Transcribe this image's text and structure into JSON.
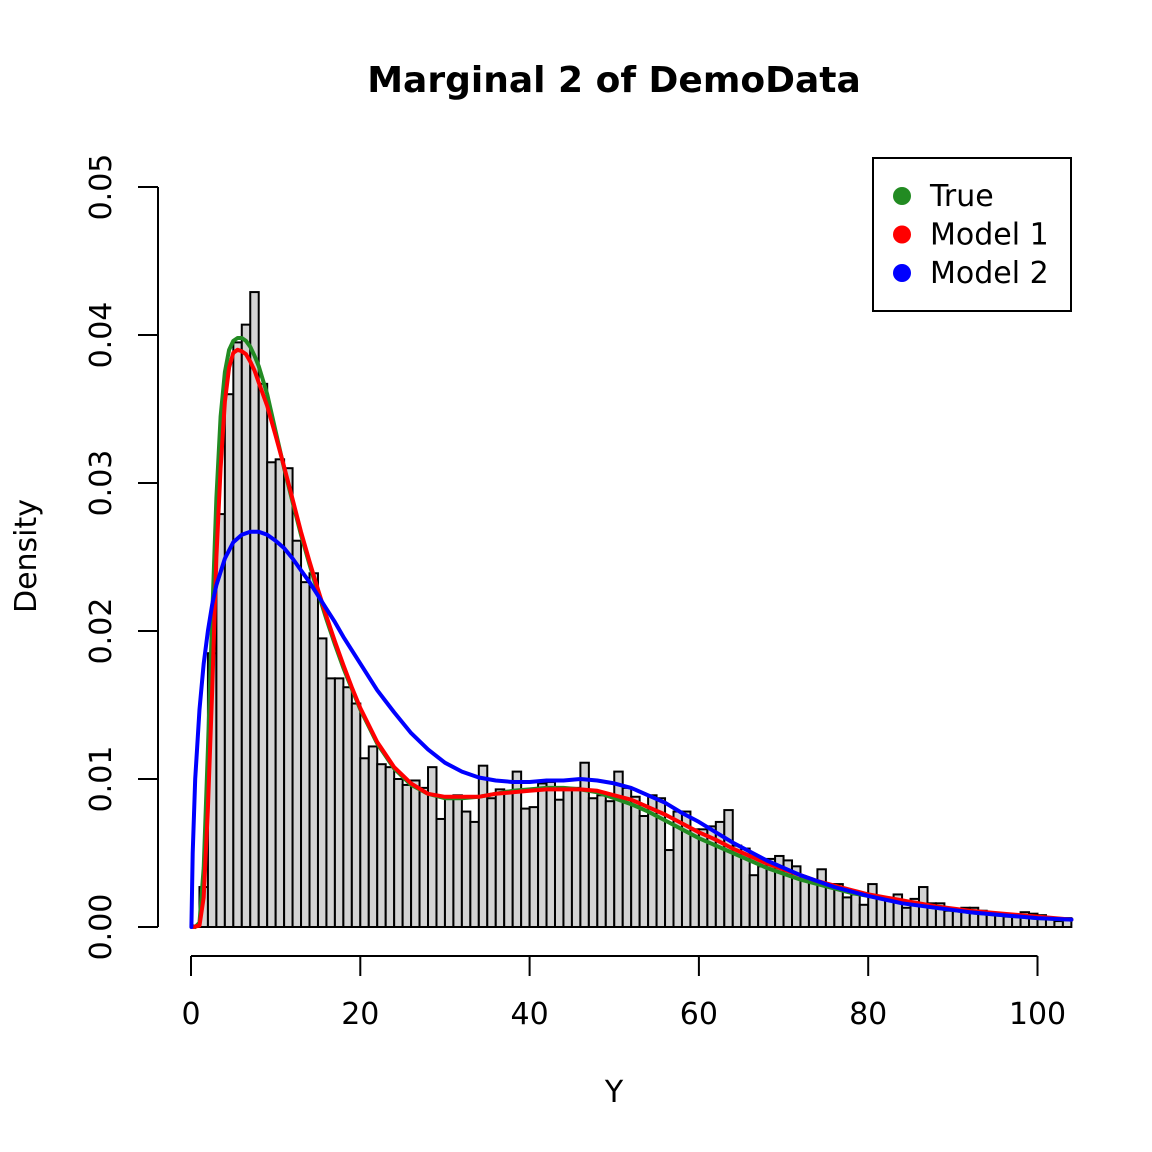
{
  "chart_data": {
    "type": "histogram",
    "title": "Marginal 2 of DemoData",
    "xlabel": "Y",
    "ylabel": "Density",
    "xlim": [
      0,
      104
    ],
    "ylim": [
      0,
      0.05
    ],
    "x_ticks": [
      0,
      20,
      40,
      60,
      80,
      100
    ],
    "x_tick_labels": [
      "0",
      "20",
      "40",
      "60",
      "80",
      "100"
    ],
    "y_ticks": [
      0,
      0.01,
      0.02,
      0.03,
      0.04,
      0.05
    ],
    "y_tick_labels": [
      "0.00",
      "0.01",
      "0.02",
      "0.03",
      "0.04",
      "0.05"
    ],
    "grid": false,
    "legend_position": "top-right",
    "histogram": {
      "bin_width": 1,
      "bin_start": 0,
      "fill": "#d3d3d3",
      "densities": [
        0.0001,
        0.0027,
        0.0185,
        0.0279,
        0.036,
        0.0395,
        0.0407,
        0.0429,
        0.0367,
        0.0314,
        0.0316,
        0.031,
        0.0261,
        0.0233,
        0.0239,
        0.0195,
        0.0168,
        0.0168,
        0.0162,
        0.0151,
        0.0114,
        0.0122,
        0.011,
        0.0108,
        0.01,
        0.0096,
        0.0099,
        0.0094,
        0.0108,
        0.0073,
        0.0087,
        0.0089,
        0.0078,
        0.0071,
        0.0109,
        0.0087,
        0.0093,
        0.0092,
        0.0105,
        0.008,
        0.0081,
        0.0097,
        0.0098,
        0.0086,
        0.0093,
        0.0094,
        0.0111,
        0.0087,
        0.0089,
        0.0085,
        0.0105,
        0.0094,
        0.0088,
        0.0075,
        0.0089,
        0.0087,
        0.0052,
        0.0078,
        0.0078,
        0.0066,
        0.0066,
        0.0068,
        0.0071,
        0.0079,
        0.0055,
        0.0053,
        0.0035,
        0.0041,
        0.0046,
        0.0048,
        0.0045,
        0.0041,
        0.0032,
        0.003,
        0.0039,
        0.0029,
        0.0029,
        0.002,
        0.0022,
        0.0015,
        0.0029,
        0.0019,
        0.0019,
        0.0022,
        0.0013,
        0.0019,
        0.0027,
        0.0016,
        0.0016,
        0.0011,
        0.0012,
        0.0013,
        0.0013,
        0.0011,
        0.0009,
        0.0009,
        0.0007,
        0.0007,
        0.001,
        0.0009,
        0.0008,
        0.0006,
        0.0004,
        0.0006
      ]
    },
    "series": [
      {
        "name": "True",
        "color": "#228b22",
        "x": [
          0.5,
          1,
          1.5,
          2,
          2.5,
          3,
          3.5,
          4,
          4.5,
          5,
          5.5,
          6,
          6.5,
          7,
          7.5,
          8,
          9,
          10,
          11,
          12,
          13,
          14,
          15,
          16,
          17,
          18,
          19,
          20,
          22,
          24,
          26,
          28,
          30,
          32,
          34,
          36,
          38,
          40,
          42,
          44,
          46,
          48,
          50,
          52,
          54,
          56,
          58,
          60,
          62,
          64,
          66,
          68,
          70,
          72,
          74,
          76,
          78,
          80,
          84,
          88,
          92,
          96,
          100,
          104
        ],
        "y": [
          0.0,
          0.0003,
          0.004,
          0.012,
          0.021,
          0.029,
          0.0345,
          0.0375,
          0.039,
          0.0396,
          0.0398,
          0.0398,
          0.0396,
          0.0392,
          0.0386,
          0.0379,
          0.036,
          0.0335,
          0.031,
          0.0287,
          0.0265,
          0.0245,
          0.0226,
          0.0208,
          0.0191,
          0.0175,
          0.0161,
          0.0147,
          0.0124,
          0.0107,
          0.0096,
          0.009,
          0.0087,
          0.0087,
          0.0088,
          0.009,
          0.0092,
          0.0093,
          0.0094,
          0.0094,
          0.0093,
          0.0091,
          0.0087,
          0.0083,
          0.0078,
          0.0072,
          0.0066,
          0.006,
          0.0055,
          0.005,
          0.0045,
          0.004,
          0.0036,
          0.0032,
          0.0029,
          0.0026,
          0.0023,
          0.0021,
          0.0017,
          0.0013,
          0.001,
          0.0008,
          0.0006,
          0.0005
        ]
      },
      {
        "name": "Model 1",
        "color": "#ff0000",
        "x": [
          0.3,
          1,
          1.5,
          2,
          2.5,
          3,
          3.5,
          4,
          4.5,
          5,
          5.5,
          6,
          6.5,
          7,
          7.5,
          8,
          9,
          10,
          11,
          12,
          13,
          14,
          15,
          16,
          17,
          18,
          19,
          20,
          22,
          24,
          26,
          28,
          30,
          32,
          34,
          36,
          38,
          40,
          42,
          44,
          46,
          48,
          50,
          52,
          54,
          56,
          58,
          60,
          62,
          64,
          66,
          68,
          70,
          72,
          74,
          76,
          78,
          80,
          84,
          88,
          92,
          96,
          100,
          104
        ],
        "y": [
          0.0,
          0.0001,
          0.002,
          0.008,
          0.016,
          0.025,
          0.031,
          0.0355,
          0.0378,
          0.0388,
          0.039,
          0.0389,
          0.0387,
          0.0382,
          0.0376,
          0.0368,
          0.0352,
          0.0332,
          0.0311,
          0.0289,
          0.0267,
          0.0247,
          0.0228,
          0.021,
          0.0193,
          0.0177,
          0.0162,
          0.0148,
          0.0125,
          0.0108,
          0.0097,
          0.009,
          0.0088,
          0.0088,
          0.0088,
          0.009,
          0.0091,
          0.0092,
          0.0093,
          0.0093,
          0.0093,
          0.0092,
          0.0089,
          0.0086,
          0.0081,
          0.0076,
          0.007,
          0.0064,
          0.0059,
          0.0053,
          0.0048,
          0.0043,
          0.0039,
          0.0035,
          0.0031,
          0.0028,
          0.0025,
          0.0022,
          0.0018,
          0.0014,
          0.0011,
          0.0009,
          0.0007,
          0.0005
        ]
      },
      {
        "name": "Model 2",
        "color": "#0000ff",
        "x": [
          0.05,
          0.2,
          0.5,
          1,
          1.5,
          2,
          2.5,
          3,
          4,
          5,
          6,
          7,
          8,
          9,
          10,
          11,
          12,
          13,
          14,
          15,
          16,
          17,
          18,
          19,
          20,
          22,
          24,
          26,
          28,
          30,
          32,
          34,
          36,
          38,
          40,
          42,
          44,
          46,
          48,
          50,
          52,
          54,
          56,
          58,
          60,
          62,
          64,
          66,
          68,
          70,
          72,
          74,
          76,
          78,
          80,
          84,
          88,
          92,
          96,
          100,
          104
        ],
        "y": [
          0.0,
          0.005,
          0.01,
          0.0147,
          0.0178,
          0.02,
          0.0218,
          0.0231,
          0.0249,
          0.026,
          0.0265,
          0.0267,
          0.0267,
          0.0265,
          0.0261,
          0.0256,
          0.0249,
          0.0241,
          0.0233,
          0.0224,
          0.0215,
          0.0206,
          0.0196,
          0.0187,
          0.0178,
          0.016,
          0.0145,
          0.0131,
          0.012,
          0.0111,
          0.0105,
          0.0101,
          0.0099,
          0.0098,
          0.0098,
          0.0099,
          0.0099,
          0.01,
          0.0099,
          0.0097,
          0.0094,
          0.0089,
          0.0084,
          0.0077,
          0.0071,
          0.0064,
          0.0057,
          0.0051,
          0.0045,
          0.004,
          0.0035,
          0.0031,
          0.0027,
          0.0024,
          0.0021,
          0.0016,
          0.0013,
          0.001,
          0.0008,
          0.0006,
          0.0005
        ]
      }
    ]
  }
}
